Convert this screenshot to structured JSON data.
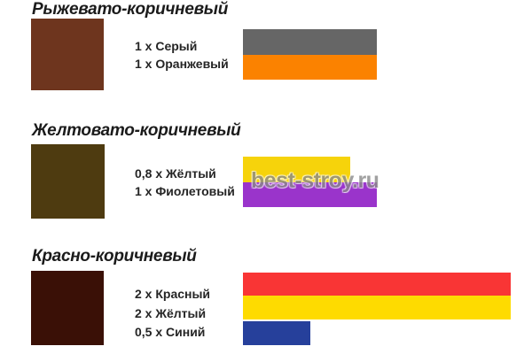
{
  "watermark": {
    "text": "best-stroy.ru",
    "color": "#8a8a8a"
  },
  "sections": [
    {
      "title": "Рыжевато-коричневый",
      "result_color": "#6E351E",
      "components": [
        {
          "label": "1 х Серый",
          "ratio": 1,
          "color": "#666666"
        },
        {
          "label": "1 х Оранжевый",
          "ratio": 1,
          "color": "#FB8200"
        }
      ]
    },
    {
      "title": "Желтовато-коричневый",
      "result_color": "#4E3B10",
      "components": [
        {
          "label": "0,8 х Жёлтый",
          "ratio": 0.8,
          "color": "#F6D30B"
        },
        {
          "label": "1 х Фиолетовый",
          "ratio": 1,
          "color": "#9A34CB"
        }
      ]
    },
    {
      "title": "Красно-коричневый",
      "result_color": "#3A1006",
      "components": [
        {
          "label": "2 х Красный",
          "ratio": 2,
          "color": "#F93535"
        },
        {
          "label": "2 х Жёлтый",
          "ratio": 2,
          "color": "#FEDB00"
        },
        {
          "label": "0,5 х Синий",
          "ratio": 0.5,
          "color": "#26409B"
        }
      ]
    }
  ]
}
